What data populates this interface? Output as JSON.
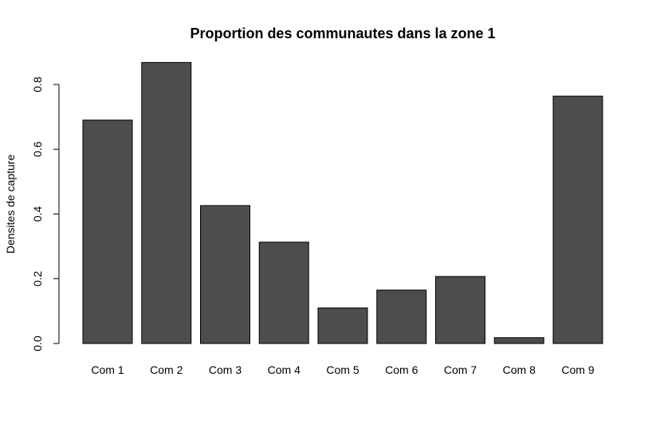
{
  "chart_data": {
    "type": "bar",
    "title": "Proportion des communautes dans la zone 1",
    "xlabel": "",
    "ylabel": "Densites de capture",
    "categories": [
      "Com 1",
      "Com 2",
      "Com 3",
      "Com 4",
      "Com 5",
      "Com 6",
      "Com 7",
      "Com 8",
      "Com 9"
    ],
    "values": [
      0.69,
      0.868,
      0.426,
      0.313,
      0.11,
      0.165,
      0.207,
      0.018,
      0.764
    ],
    "ylim": [
      0,
      0.8
    ],
    "yticks": [
      "0.0",
      "0.2",
      "0.4",
      "0.6",
      "0.8"
    ],
    "bar_color": "#4d4d4d",
    "grid": false,
    "legend": "none"
  }
}
